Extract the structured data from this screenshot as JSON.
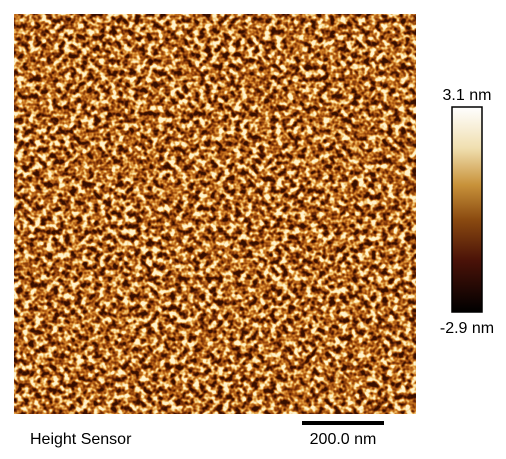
{
  "colorbar": {
    "max_label": "3.1 nm",
    "min_label": "-2.9 nm"
  },
  "caption": "Height Sensor",
  "scale_bar": {
    "label": "200.0 nm"
  }
}
